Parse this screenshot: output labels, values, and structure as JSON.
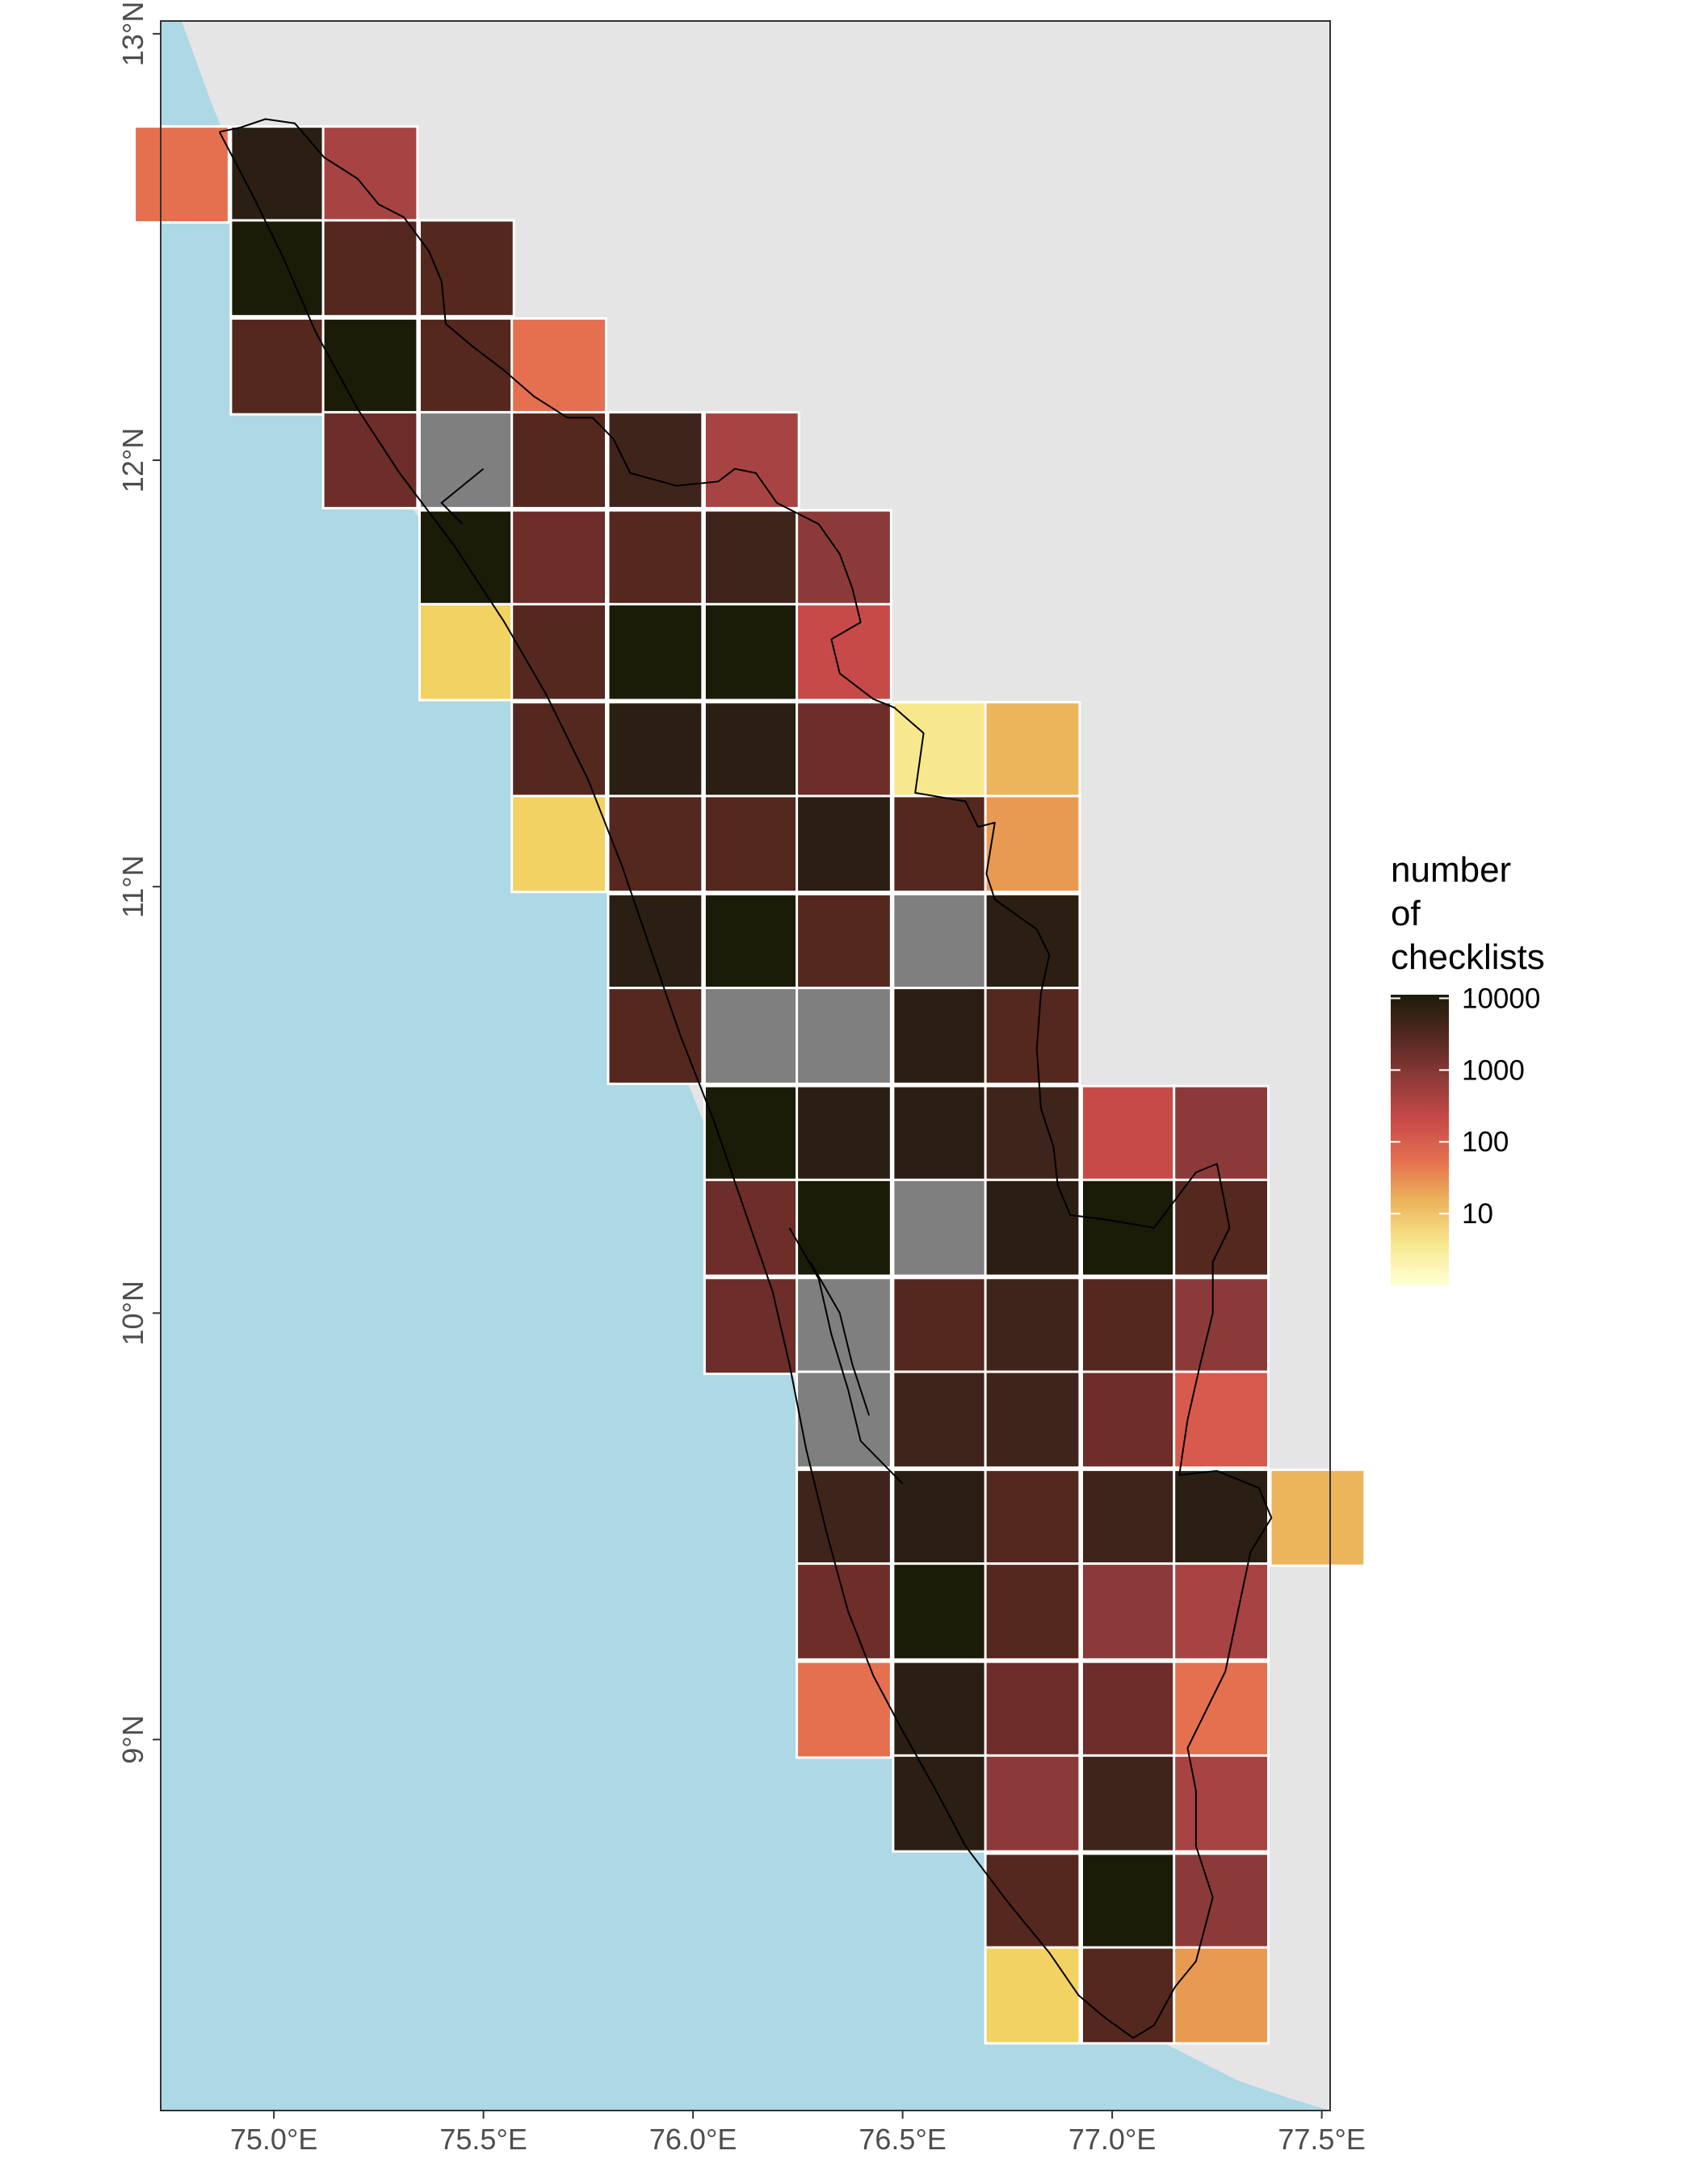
{
  "map": {
    "lon_range": [
      74.73,
      77.52
    ],
    "lat_range": [
      8.13,
      13.03
    ],
    "colors": {
      "land": "#e5e5e5",
      "sea": "#add8e6",
      "no_data": "#7f7f7f",
      "cell_border": "#ffffff",
      "state_outline": "#000000",
      "panel_border": "#333333"
    },
    "cell_colors": {
      "A": "#1b1c08",
      "B": "#2a1f12",
      "C": "#3f241b",
      "D": "#54281f",
      "E": "#6d2d28",
      "F": "#8c3a39",
      "G": "#a84343",
      "H": "#c84a48",
      "I": "#d85a4d",
      "J": "#e47050",
      "K": "#e99a52",
      "L": "#ecb55c",
      "M": "#f2d262",
      "N": "#f7e88e",
      "N0": "#7f7f7f"
    },
    "x_ticks": [
      {
        "value": 75.0,
        "label": "75.0°E"
      },
      {
        "value": 75.5,
        "label": "75.5°E"
      },
      {
        "value": 76.0,
        "label": "76.0°E"
      },
      {
        "value": 76.5,
        "label": "76.5°E"
      },
      {
        "value": 77.0,
        "label": "77.0°E"
      },
      {
        "value": 77.5,
        "label": "77.5°E"
      }
    ],
    "y_ticks": [
      {
        "value": 9,
        "label": "9°N"
      },
      {
        "value": 10,
        "label": "10°N"
      },
      {
        "value": 11,
        "label": "11°N"
      },
      {
        "value": 12,
        "label": "12°N"
      },
      {
        "value": 13,
        "label": "13°N"
      }
    ],
    "grid_cells": [
      {
        "lon": 74.78,
        "lat": 12.67,
        "color": "J"
      },
      {
        "lon": 75.01,
        "lat": 12.67,
        "color": "B"
      },
      {
        "lon": 75.23,
        "lat": 12.67,
        "color": "G"
      },
      {
        "lon": 75.01,
        "lat": 12.45,
        "color": "A"
      },
      {
        "lon": 75.23,
        "lat": 12.45,
        "color": "D"
      },
      {
        "lon": 75.46,
        "lat": 12.45,
        "color": "D"
      },
      {
        "lon": 75.01,
        "lat": 12.22,
        "color": "D"
      },
      {
        "lon": 75.23,
        "lat": 12.22,
        "color": "A"
      },
      {
        "lon": 75.46,
        "lat": 12.22,
        "color": "D"
      },
      {
        "lon": 75.68,
        "lat": 12.22,
        "color": "J"
      },
      {
        "lon": 75.23,
        "lat": 12.0,
        "color": "E"
      },
      {
        "lon": 75.46,
        "lat": 12.0,
        "color": "N0"
      },
      {
        "lon": 75.68,
        "lat": 12.0,
        "color": "D"
      },
      {
        "lon": 75.91,
        "lat": 12.0,
        "color": "C"
      },
      {
        "lon": 76.14,
        "lat": 12.0,
        "color": "G"
      },
      {
        "lon": 75.46,
        "lat": 11.77,
        "color": "A"
      },
      {
        "lon": 75.68,
        "lat": 11.77,
        "color": "E"
      },
      {
        "lon": 75.91,
        "lat": 11.77,
        "color": "D"
      },
      {
        "lon": 76.14,
        "lat": 11.77,
        "color": "C"
      },
      {
        "lon": 76.36,
        "lat": 11.77,
        "color": "F"
      },
      {
        "lon": 75.46,
        "lat": 11.55,
        "color": "M"
      },
      {
        "lon": 75.68,
        "lat": 11.55,
        "color": "D"
      },
      {
        "lon": 75.91,
        "lat": 11.55,
        "color": "A"
      },
      {
        "lon": 76.14,
        "lat": 11.55,
        "color": "A"
      },
      {
        "lon": 76.36,
        "lat": 11.55,
        "color": "H"
      },
      {
        "lon": 75.68,
        "lat": 11.32,
        "color": "D"
      },
      {
        "lon": 75.91,
        "lat": 11.32,
        "color": "B"
      },
      {
        "lon": 76.14,
        "lat": 11.32,
        "color": "B"
      },
      {
        "lon": 76.36,
        "lat": 11.32,
        "color": "E"
      },
      {
        "lon": 76.59,
        "lat": 11.32,
        "color": "N"
      },
      {
        "lon": 76.81,
        "lat": 11.32,
        "color": "L"
      },
      {
        "lon": 75.68,
        "lat": 11.1,
        "color": "M"
      },
      {
        "lon": 75.91,
        "lat": 11.1,
        "color": "D"
      },
      {
        "lon": 76.14,
        "lat": 11.1,
        "color": "D"
      },
      {
        "lon": 76.36,
        "lat": 11.1,
        "color": "B"
      },
      {
        "lon": 76.59,
        "lat": 11.1,
        "color": "D"
      },
      {
        "lon": 76.81,
        "lat": 11.1,
        "color": "K"
      },
      {
        "lon": 75.91,
        "lat": 10.87,
        "color": "B"
      },
      {
        "lon": 76.14,
        "lat": 10.87,
        "color": "A"
      },
      {
        "lon": 76.36,
        "lat": 10.87,
        "color": "D"
      },
      {
        "lon": 76.59,
        "lat": 10.87,
        "color": "N0"
      },
      {
        "lon": 76.81,
        "lat": 10.87,
        "color": "B"
      },
      {
        "lon": 75.91,
        "lat": 10.65,
        "color": "D"
      },
      {
        "lon": 76.14,
        "lat": 10.65,
        "color": "N0"
      },
      {
        "lon": 76.36,
        "lat": 10.65,
        "color": "N0"
      },
      {
        "lon": 76.59,
        "lat": 10.65,
        "color": "B"
      },
      {
        "lon": 76.81,
        "lat": 10.65,
        "color": "D"
      },
      {
        "lon": 76.14,
        "lat": 10.42,
        "color": "A"
      },
      {
        "lon": 76.36,
        "lat": 10.42,
        "color": "B"
      },
      {
        "lon": 76.59,
        "lat": 10.42,
        "color": "B"
      },
      {
        "lon": 76.81,
        "lat": 10.42,
        "color": "C"
      },
      {
        "lon": 77.04,
        "lat": 10.42,
        "color": "H"
      },
      {
        "lon": 77.26,
        "lat": 10.42,
        "color": "F"
      },
      {
        "lon": 76.14,
        "lat": 10.2,
        "color": "E"
      },
      {
        "lon": 76.36,
        "lat": 10.2,
        "color": "A"
      },
      {
        "lon": 76.59,
        "lat": 10.2,
        "color": "N0"
      },
      {
        "lon": 76.81,
        "lat": 10.2,
        "color": "B"
      },
      {
        "lon": 77.04,
        "lat": 10.2,
        "color": "A"
      },
      {
        "lon": 77.26,
        "lat": 10.2,
        "color": "D"
      },
      {
        "lon": 76.14,
        "lat": 9.97,
        "color": "E"
      },
      {
        "lon": 76.36,
        "lat": 9.97,
        "color": "N0"
      },
      {
        "lon": 76.59,
        "lat": 9.97,
        "color": "D"
      },
      {
        "lon": 76.81,
        "lat": 9.97,
        "color": "C"
      },
      {
        "lon": 77.04,
        "lat": 9.97,
        "color": "D"
      },
      {
        "lon": 77.26,
        "lat": 9.97,
        "color": "F"
      },
      {
        "lon": 76.36,
        "lat": 9.75,
        "color": "N0"
      },
      {
        "lon": 76.59,
        "lat": 9.75,
        "color": "C"
      },
      {
        "lon": 76.81,
        "lat": 9.75,
        "color": "C"
      },
      {
        "lon": 77.04,
        "lat": 9.75,
        "color": "E"
      },
      {
        "lon": 77.26,
        "lat": 9.75,
        "color": "I"
      },
      {
        "lon": 76.36,
        "lat": 9.52,
        "color": "C"
      },
      {
        "lon": 76.59,
        "lat": 9.52,
        "color": "B"
      },
      {
        "lon": 76.81,
        "lat": 9.52,
        "color": "D"
      },
      {
        "lon": 77.04,
        "lat": 9.52,
        "color": "C"
      },
      {
        "lon": 77.26,
        "lat": 9.52,
        "color": "B"
      },
      {
        "lon": 77.49,
        "lat": 9.52,
        "color": "L"
      },
      {
        "lon": 76.36,
        "lat": 9.3,
        "color": "E"
      },
      {
        "lon": 76.59,
        "lat": 9.3,
        "color": "A"
      },
      {
        "lon": 76.81,
        "lat": 9.3,
        "color": "D"
      },
      {
        "lon": 77.04,
        "lat": 9.3,
        "color": "F"
      },
      {
        "lon": 77.26,
        "lat": 9.3,
        "color": "G"
      },
      {
        "lon": 76.36,
        "lat": 9.07,
        "color": "J"
      },
      {
        "lon": 76.59,
        "lat": 9.07,
        "color": "B"
      },
      {
        "lon": 76.81,
        "lat": 9.07,
        "color": "E"
      },
      {
        "lon": 77.04,
        "lat": 9.07,
        "color": "E"
      },
      {
        "lon": 77.26,
        "lat": 9.07,
        "color": "J"
      },
      {
        "lon": 76.59,
        "lat": 8.85,
        "color": "B"
      },
      {
        "lon": 76.81,
        "lat": 8.85,
        "color": "F"
      },
      {
        "lon": 77.04,
        "lat": 8.85,
        "color": "C"
      },
      {
        "lon": 77.26,
        "lat": 8.85,
        "color": "G"
      },
      {
        "lon": 76.81,
        "lat": 8.62,
        "color": "D"
      },
      {
        "lon": 77.04,
        "lat": 8.62,
        "color": "A"
      },
      {
        "lon": 77.26,
        "lat": 8.62,
        "color": "F"
      },
      {
        "lon": 76.81,
        "lat": 8.4,
        "color": "M"
      },
      {
        "lon": 77.04,
        "lat": 8.4,
        "color": "D"
      },
      {
        "lon": 77.26,
        "lat": 8.4,
        "color": "K"
      }
    ],
    "sea_boundary": [
      [
        74.73,
        13.03
      ],
      [
        74.78,
        13.03
      ],
      [
        74.85,
        12.84
      ],
      [
        74.9,
        12.72
      ],
      [
        74.96,
        12.6
      ],
      [
        75.06,
        12.38
      ],
      [
        75.15,
        12.18
      ],
      [
        75.22,
        12.05
      ],
      [
        75.32,
        11.9
      ],
      [
        75.44,
        11.74
      ],
      [
        75.56,
        11.55
      ],
      [
        75.66,
        11.36
      ],
      [
        75.75,
        11.13
      ],
      [
        75.84,
        10.9
      ],
      [
        75.93,
        10.68
      ],
      [
        76.02,
        10.46
      ],
      [
        76.11,
        10.25
      ],
      [
        76.19,
        10.03
      ],
      [
        76.26,
        9.78
      ],
      [
        76.32,
        9.52
      ],
      [
        76.4,
        9.3
      ],
      [
        76.5,
        9.08
      ],
      [
        76.62,
        8.88
      ],
      [
        76.78,
        8.67
      ],
      [
        76.95,
        8.46
      ],
      [
        77.1,
        8.3
      ],
      [
        77.2,
        8.25
      ],
      [
        77.3,
        8.2
      ],
      [
        77.42,
        8.16
      ],
      [
        77.52,
        8.13
      ],
      [
        74.73,
        8.13
      ]
    ],
    "kerala_outline": [
      [
        74.87,
        12.77
      ],
      [
        74.92,
        12.78
      ],
      [
        74.98,
        12.8
      ],
      [
        75.05,
        12.79
      ],
      [
        75.12,
        12.71
      ],
      [
        75.2,
        12.66
      ],
      [
        75.25,
        12.6
      ],
      [
        75.31,
        12.57
      ],
      [
        75.37,
        12.49
      ],
      [
        75.4,
        12.42
      ],
      [
        75.41,
        12.32
      ],
      [
        75.47,
        12.27
      ],
      [
        75.55,
        12.21
      ],
      [
        75.62,
        12.15
      ],
      [
        75.7,
        12.1
      ],
      [
        75.76,
        12.1
      ],
      [
        75.81,
        12.05
      ],
      [
        75.85,
        11.97
      ],
      [
        75.96,
        11.94
      ],
      [
        76.06,
        11.95
      ],
      [
        76.1,
        11.98
      ],
      [
        76.15,
        11.97
      ],
      [
        76.2,
        11.9
      ],
      [
        76.3,
        11.85
      ],
      [
        76.35,
        11.78
      ],
      [
        76.38,
        11.7
      ],
      [
        76.4,
        11.62
      ],
      [
        76.33,
        11.58
      ],
      [
        76.35,
        11.5
      ],
      [
        76.43,
        11.44
      ],
      [
        76.48,
        11.42
      ],
      [
        76.55,
        11.36
      ],
      [
        76.53,
        11.22
      ],
      [
        76.65,
        11.2
      ],
      [
        76.68,
        11.14
      ],
      [
        76.72,
        11.15
      ],
      [
        76.7,
        11.03
      ],
      [
        76.72,
        10.97
      ],
      [
        76.82,
        10.9
      ],
      [
        76.85,
        10.84
      ],
      [
        76.83,
        10.75
      ],
      [
        76.82,
        10.62
      ],
      [
        76.83,
        10.48
      ],
      [
        76.86,
        10.39
      ],
      [
        76.87,
        10.3
      ],
      [
        76.9,
        10.23
      ],
      [
        76.98,
        10.22
      ],
      [
        77.1,
        10.2
      ],
      [
        77.2,
        10.33
      ],
      [
        77.25,
        10.35
      ],
      [
        77.28,
        10.2
      ],
      [
        77.24,
        10.12
      ],
      [
        77.24,
        10.0
      ],
      [
        77.21,
        9.88
      ],
      [
        77.18,
        9.75
      ],
      [
        77.16,
        9.62
      ],
      [
        77.25,
        9.63
      ],
      [
        77.35,
        9.59
      ],
      [
        77.38,
        9.52
      ],
      [
        77.33,
        9.44
      ],
      [
        77.3,
        9.3
      ],
      [
        77.27,
        9.16
      ],
      [
        77.22,
        9.06
      ],
      [
        77.18,
        8.98
      ],
      [
        77.2,
        8.88
      ],
      [
        77.2,
        8.75
      ],
      [
        77.24,
        8.63
      ],
      [
        77.2,
        8.48
      ],
      [
        77.15,
        8.42
      ],
      [
        77.1,
        8.33
      ],
      [
        77.05,
        8.3
      ],
      [
        76.98,
        8.35
      ],
      [
        76.92,
        8.4
      ],
      [
        76.85,
        8.5
      ],
      [
        76.75,
        8.62
      ],
      [
        76.65,
        8.75
      ],
      [
        76.58,
        8.88
      ],
      [
        76.5,
        9.02
      ],
      [
        76.43,
        9.15
      ],
      [
        76.37,
        9.3
      ],
      [
        76.32,
        9.48
      ],
      [
        76.27,
        9.68
      ],
      [
        76.23,
        9.88
      ],
      [
        76.19,
        10.05
      ],
      [
        76.12,
        10.25
      ],
      [
        76.05,
        10.45
      ],
      [
        75.97,
        10.65
      ],
      [
        75.9,
        10.85
      ],
      [
        75.83,
        11.05
      ],
      [
        75.75,
        11.25
      ],
      [
        75.65,
        11.45
      ],
      [
        75.55,
        11.62
      ],
      [
        75.43,
        11.8
      ],
      [
        75.3,
        11.97
      ],
      [
        75.2,
        12.12
      ],
      [
        75.1,
        12.3
      ],
      [
        75.02,
        12.48
      ],
      [
        74.95,
        12.62
      ],
      [
        74.87,
        12.77
      ]
    ],
    "backwater_lines": [
      [
        [
          76.23,
          10.2
        ],
        [
          76.3,
          10.08
        ],
        [
          76.33,
          9.95
        ],
        [
          76.37,
          9.82
        ],
        [
          76.4,
          9.7
        ],
        [
          76.5,
          9.6
        ]
      ],
      [
        [
          76.28,
          10.12
        ],
        [
          76.35,
          10.0
        ],
        [
          76.38,
          9.88
        ],
        [
          76.42,
          9.76
        ]
      ],
      [
        [
          75.5,
          11.98
        ],
        [
          75.4,
          11.9
        ],
        [
          75.45,
          11.85
        ]
      ]
    ]
  },
  "legend": {
    "title_lines": [
      "number",
      "of",
      "checklists"
    ],
    "ticks": [
      {
        "label": "10000",
        "value": 10000
      },
      {
        "label": "1000",
        "value": 1000
      },
      {
        "label": "100",
        "value": 100
      },
      {
        "label": "10",
        "value": 10
      }
    ],
    "log_range": [
      0,
      4.05
    ],
    "gradient_stops": [
      "#1b1c08",
      "#54281f",
      "#8c3a39",
      "#c84a48",
      "#e47050",
      "#ecb55c",
      "#f7e88e",
      "#ffffd4"
    ]
  }
}
